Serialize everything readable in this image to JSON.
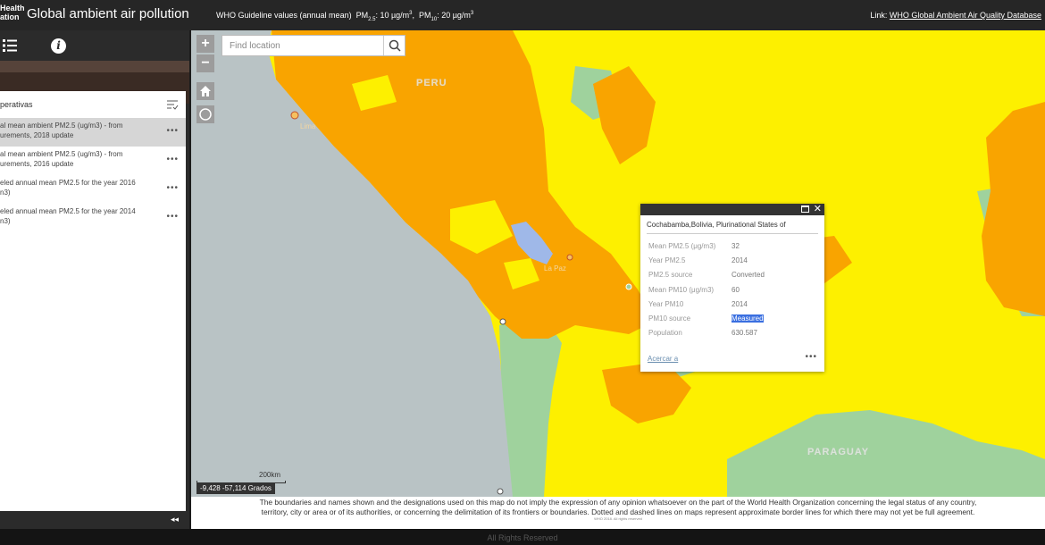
{
  "header": {
    "logo_line1": "Health",
    "logo_line2": "ation",
    "title": "Global ambient air pollution",
    "guideline_prefix": "WHO Guideline values (annual mean)",
    "pm25_label": "PM",
    "pm25_sub": "2.5",
    "pm25_value": ": 10 µg/m",
    "pm10_label": "PM",
    "pm10_sub": "10",
    "pm10_value": ": 20 µg/m",
    "sup": "3",
    "link_prefix": "Link:",
    "link_text": "WHO Global Ambient Air Quality Database"
  },
  "panel": {
    "header_label": "perativas",
    "layers": [
      {
        "line1": "al mean ambient PM2.5 (ug/m3) - from",
        "line2": "urements, 2018 update",
        "selected": true
      },
      {
        "line1": "al mean ambient PM2.5 (ug/m3) - from",
        "line2": "urements, 2016 update",
        "selected": false
      },
      {
        "line1": "eled annual mean PM2.5 for the year 2016",
        "line2": "n3)",
        "selected": false
      },
      {
        "line1": "eled annual mean PM2.5 for the year 2014",
        "line2": "n3)",
        "selected": false
      }
    ],
    "more_label": "•••",
    "collapse_label": "◂◂"
  },
  "map": {
    "search_placeholder": "Find location",
    "zoom_in": "+",
    "zoom_out": "−",
    "labels": {
      "peru": "PERU",
      "paraguay": "PARAGUAY",
      "la_paz": "La Paz",
      "lima": "Lima"
    },
    "scale_text": "200km",
    "coords": "-9,428 -57,114 Grados",
    "colors": {
      "orange": "#f9a400",
      "yellow": "#fdf000",
      "green": "#9fd29d",
      "water": "#b9c3c5",
      "lake": "#9fb8e8"
    }
  },
  "popup": {
    "title": "Cochabamba,Bolivia, Plurinational States of",
    "rows": [
      {
        "key": "Mean PM2.5 (μg/m3)",
        "value": "32"
      },
      {
        "key": "Year PM2.5",
        "value": "2014"
      },
      {
        "key": "PM2.5 source",
        "value": "Converted"
      },
      {
        "key": "Mean PM10 (μg/m3)",
        "value": "60"
      },
      {
        "key": "Year PM10",
        "value": "2014"
      },
      {
        "key": "PM10 source",
        "value": "Measured"
      },
      {
        "key": "Population",
        "value": "630.587"
      }
    ],
    "zoom_link": "Acercar a",
    "more_label": "•••"
  },
  "disclaimer": {
    "line1": "The boundaries and names shown and the designations used on this map do not imply the expression of any opinion whatsoever on the part of the World Health Organization concerning the legal status of any country,",
    "line2": "territory, city or area or of its authorities, or concerning the delimitation of its frontiers or boundaries. Dotted and dashed lines on maps represent approximate border lines for which there may not yet be full agreement.",
    "small": "WHO 2018. All rights reserved"
  },
  "footer": {
    "text": "All Rights Reserved"
  }
}
